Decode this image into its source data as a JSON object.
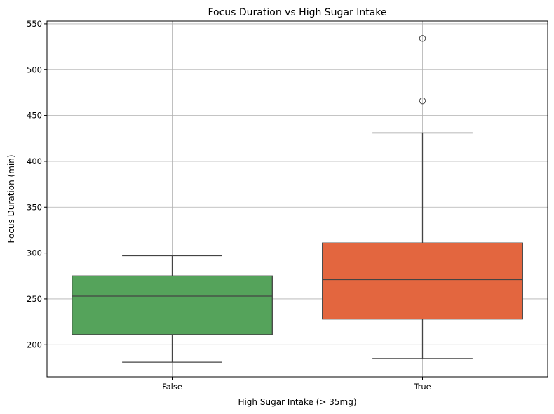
{
  "chart_data": {
    "type": "box",
    "title": "Focus Duration vs High Sugar Intake",
    "xlabel": "High Sugar Intake (> 35mg)",
    "ylabel": "Focus Duration (min)",
    "ylim": [
      165,
      553
    ],
    "yticks": [
      200,
      250,
      300,
      350,
      400,
      450,
      500,
      550
    ],
    "grid": true,
    "categories": [
      "False",
      "True"
    ],
    "boxes": [
      {
        "category": "False",
        "color": "#55a35b",
        "whisker_low": 181,
        "q1": 211,
        "median": 253,
        "q3": 275,
        "whisker_high": 297,
        "outliers": []
      },
      {
        "category": "True",
        "color": "#e3663f",
        "whisker_low": 185,
        "q1": 228,
        "median": 271,
        "q3": 311,
        "whisker_high": 431,
        "outliers": [
          466,
          534
        ]
      }
    ]
  }
}
